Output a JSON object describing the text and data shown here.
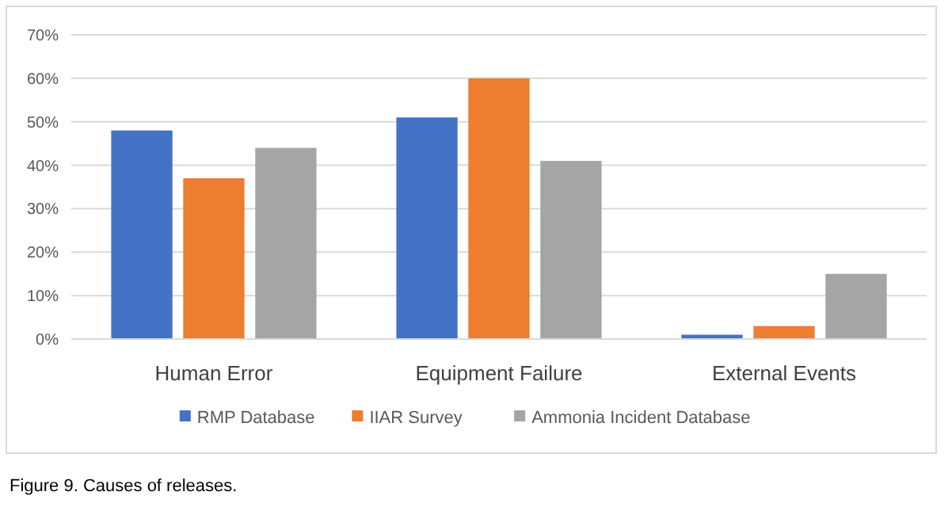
{
  "chart_data": {
    "type": "bar",
    "categories": [
      "Human Error",
      "Equipment Failure",
      "External Events"
    ],
    "series": [
      {
        "name": "RMP Database",
        "color": "#4472c4",
        "values": [
          48,
          51,
          1
        ]
      },
      {
        "name": "IIAR Survey",
        "color": "#ed7d31",
        "values": [
          37,
          60,
          3
        ]
      },
      {
        "name": "Ammonia Incident Database",
        "color": "#a5a5a5",
        "values": [
          44,
          41,
          15
        ]
      }
    ],
    "ylim": [
      0,
      70
    ],
    "yticks": [
      {
        "value": 0,
        "label": "0%"
      },
      {
        "value": 10,
        "label": "10%"
      },
      {
        "value": 20,
        "label": "20%"
      },
      {
        "value": 30,
        "label": "30%"
      },
      {
        "value": 40,
        "label": "40%"
      },
      {
        "value": 50,
        "label": "50%"
      },
      {
        "value": 60,
        "label": "60%"
      },
      {
        "value": 70,
        "label": "70%"
      }
    ],
    "grid": "y",
    "legend": "bottom",
    "annotations": [
      "Figure 9. Causes of releases."
    ]
  }
}
